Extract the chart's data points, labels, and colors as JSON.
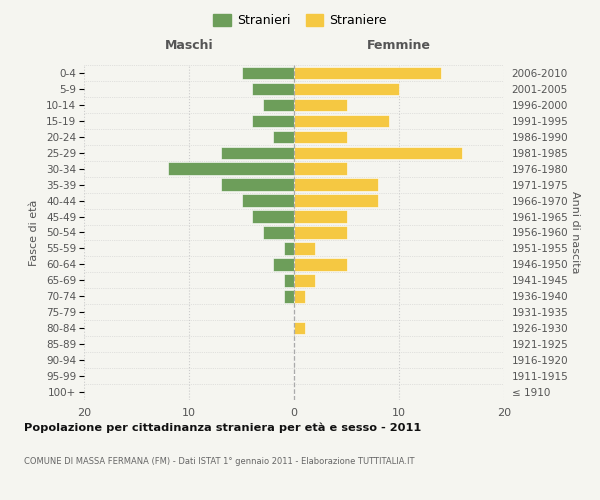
{
  "age_groups": [
    "100+",
    "95-99",
    "90-94",
    "85-89",
    "80-84",
    "75-79",
    "70-74",
    "65-69",
    "60-64",
    "55-59",
    "50-54",
    "45-49",
    "40-44",
    "35-39",
    "30-34",
    "25-29",
    "20-24",
    "15-19",
    "10-14",
    "5-9",
    "0-4"
  ],
  "birth_years": [
    "≤ 1910",
    "1911-1915",
    "1916-1920",
    "1921-1925",
    "1926-1930",
    "1931-1935",
    "1936-1940",
    "1941-1945",
    "1946-1950",
    "1951-1955",
    "1956-1960",
    "1961-1965",
    "1966-1970",
    "1971-1975",
    "1976-1980",
    "1981-1985",
    "1986-1990",
    "1991-1995",
    "1996-2000",
    "2001-2005",
    "2006-2010"
  ],
  "maschi": [
    0,
    0,
    0,
    0,
    0,
    0,
    1,
    1,
    2,
    1,
    3,
    4,
    5,
    7,
    12,
    7,
    2,
    4,
    3,
    4,
    5
  ],
  "femmine": [
    0,
    0,
    0,
    0,
    1,
    0,
    1,
    2,
    5,
    2,
    5,
    5,
    8,
    8,
    5,
    16,
    5,
    9,
    5,
    10,
    14
  ],
  "color_maschi": "#6d9e5a",
  "color_femmine": "#f5c842",
  "title": "Popolazione per cittadinanza straniera per età e sesso - 2011",
  "subtitle": "COMUNE DI MASSA FERMANA (FM) - Dati ISTAT 1° gennaio 2011 - Elaborazione TUTTITALIA.IT",
  "xlabel_left": "Maschi",
  "xlabel_right": "Femmine",
  "ylabel_left": "Fasce di età",
  "ylabel_right": "Anni di nascita",
  "legend_maschi": "Stranieri",
  "legend_femmine": "Straniere",
  "xlim": 20,
  "background_color": "#f5f5f0"
}
